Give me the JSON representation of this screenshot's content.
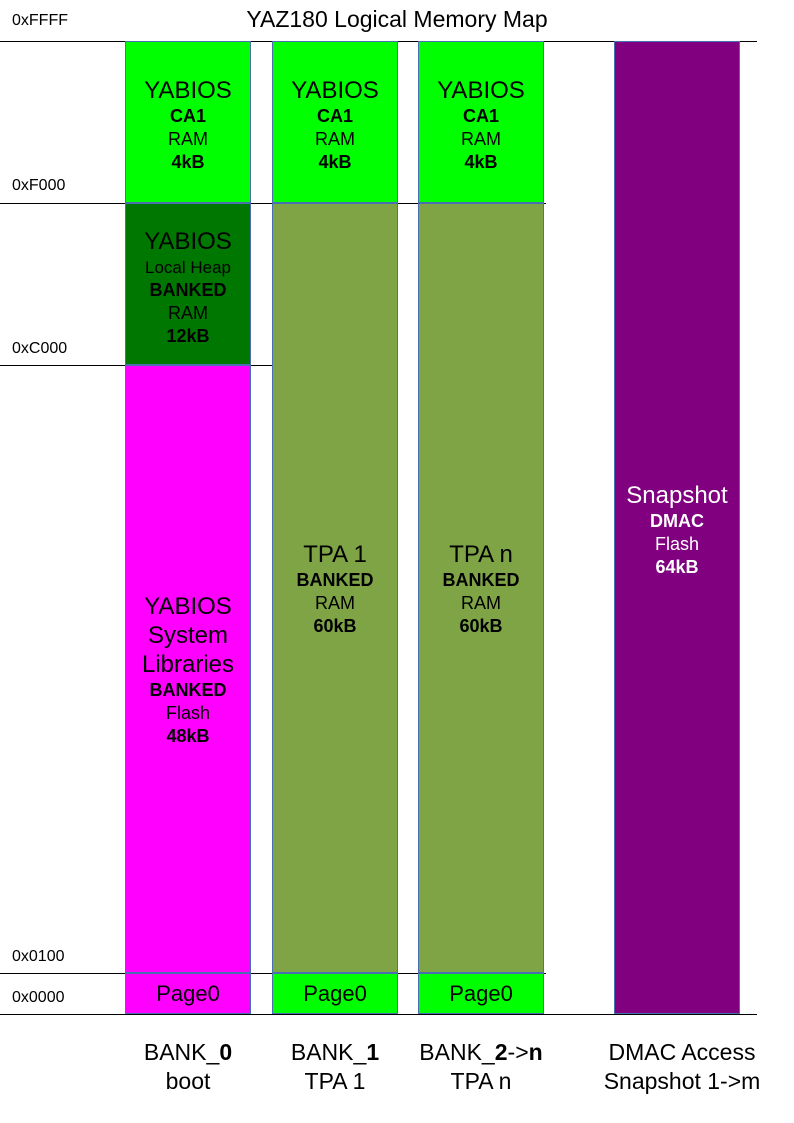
{
  "title": "YAZ180 Logical Memory Map",
  "addresses": {
    "ffff": "0xFFFF",
    "f000": "0xF000",
    "c000": "0xC000",
    "a0100": "0x0100",
    "a0000": "0x0000"
  },
  "bank0": {
    "top": {
      "l1": "YABIOS",
      "l2": "CA1",
      "l3": "RAM",
      "l4": "4kB"
    },
    "heap": {
      "l1": "YABIOS",
      "l2": "Local Heap",
      "l3": "BANKED",
      "l4": "RAM",
      "l5": "12kB"
    },
    "libs": {
      "l1": "YABIOS",
      "l2": "System",
      "l3": "Libraries",
      "l4": "BANKED",
      "l5": "Flash",
      "l6": "48kB"
    },
    "page0": "Page0",
    "label": {
      "pre": "BANK_",
      "num": "0",
      "sub": "boot"
    }
  },
  "bank1": {
    "top": {
      "l1": "YABIOS",
      "l2": "CA1",
      "l3": "RAM",
      "l4": "4kB"
    },
    "tpa": {
      "l1": "TPA 1",
      "l2": "BANKED",
      "l3": "RAM",
      "l4": "60kB"
    },
    "page0": "Page0",
    "label": {
      "pre": "BANK_",
      "num": "1",
      "sub": "TPA 1"
    }
  },
  "bank2": {
    "top": {
      "l1": "YABIOS",
      "l2": "CA1",
      "l3": "RAM",
      "l4": "4kB"
    },
    "tpa": {
      "l1": "TPA n",
      "l2": "BANKED",
      "l3": "RAM",
      "l4": "60kB"
    },
    "page0": "Page0",
    "label": {
      "pre": "BANK_",
      "num": "2",
      "arrow": "->",
      "n": "n",
      "sub": "TPA n"
    }
  },
  "dmac": {
    "block": {
      "l1": "Snapshot",
      "l2": "DMAC",
      "l3": "Flash",
      "l4": "64kB"
    },
    "label": {
      "l1": "DMAC Access",
      "l2": "Snapshot 1->m"
    }
  },
  "colors": {
    "bright_green": "#00ff00",
    "dark_green": "#007700",
    "magenta": "#ff00ff",
    "olive": "#7ea446",
    "purple": "#800080"
  }
}
